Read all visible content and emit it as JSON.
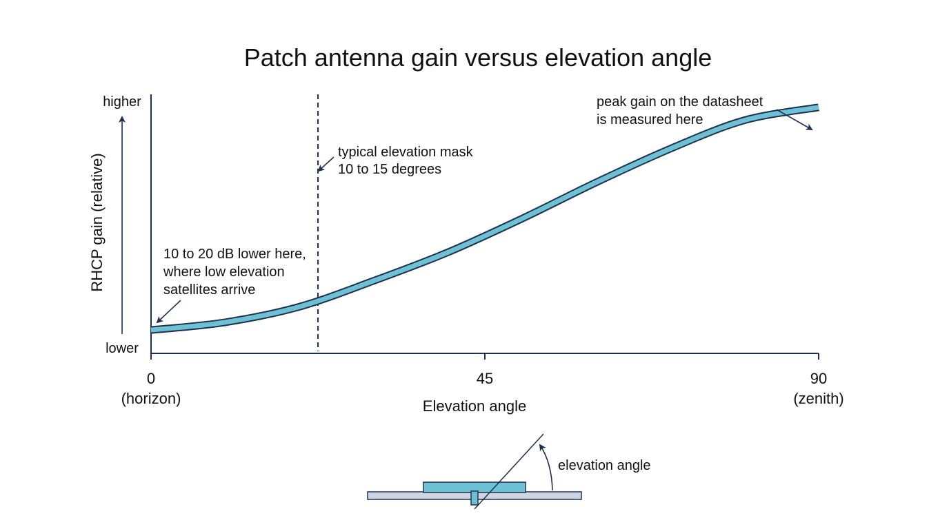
{
  "title": "Patch antenna gain versus elevation angle",
  "colors": {
    "axis": "#1e3050",
    "curve_fill": "#6ec1d2",
    "curve_stroke": "#1e3050",
    "text": "#111111",
    "ground_plane": "#cfd6e0"
  },
  "y_axis": {
    "label": "RHCP gain (relative)",
    "high_label": "higher",
    "low_label": "lower"
  },
  "x_axis": {
    "label": "Elevation angle",
    "ticks": [
      {
        "value": 0,
        "label": "0",
        "sublabel": "(horizon)"
      },
      {
        "value": 45,
        "label": "45",
        "sublabel": ""
      },
      {
        "value": 90,
        "label": "90",
        "sublabel": "(zenith)"
      }
    ]
  },
  "chart_data": {
    "type": "line",
    "x_range": [
      0,
      90
    ],
    "y_range": [
      0,
      1
    ],
    "mask_angle": 22.5,
    "curve": {
      "x": [
        0,
        10,
        20,
        30,
        40,
        50,
        60,
        70,
        80,
        90
      ],
      "y": [
        0.09,
        0.12,
        0.18,
        0.28,
        0.39,
        0.52,
        0.66,
        0.79,
        0.9,
        0.95
      ]
    }
  },
  "annotations": {
    "low": [
      "10 to 20 dB lower here,",
      "where low elevation",
      "satellites arrive"
    ],
    "mask": [
      "typical elevation mask",
      "10 to 15 degrees"
    ],
    "peak": [
      "peak gain on the datasheet",
      "is measured here"
    ]
  },
  "antenna_diagram": {
    "label": "elevation angle"
  }
}
